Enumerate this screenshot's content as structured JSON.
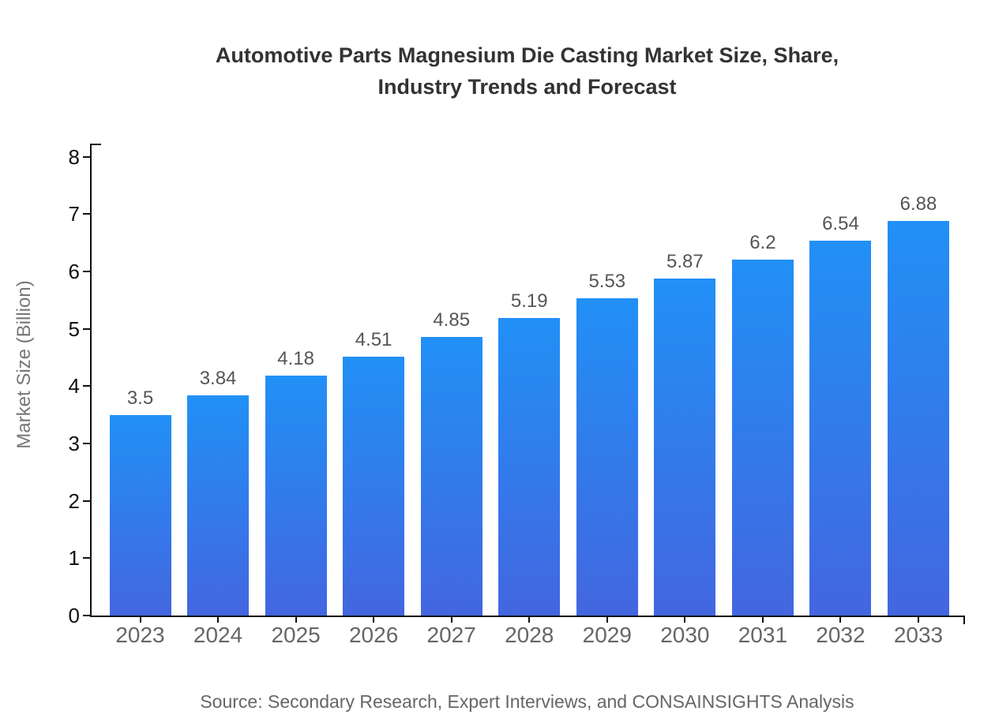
{
  "title": {
    "line1": "Automotive Parts Magnesium Die Casting Market Size, Share,",
    "line2": "Industry Trends and Forecast"
  },
  "source": "Source: Secondary Research, Expert Interviews, and CONSAINSIGHTS Analysis",
  "chart_data": {
    "type": "bar",
    "title": "Automotive Parts Magnesium Die Casting Market Size, Share, Industry Trends and Forecast",
    "categories": [
      "2023",
      "2024",
      "2025",
      "2026",
      "2027",
      "2028",
      "2029",
      "2030",
      "2031",
      "2032",
      "2033"
    ],
    "values": [
      3.5,
      3.84,
      4.18,
      4.51,
      4.85,
      5.19,
      5.53,
      5.87,
      6.2,
      6.54,
      6.88
    ],
    "value_labels": [
      "3.5",
      "3.84",
      "4.18",
      "4.51",
      "4.85",
      "5.19",
      "5.53",
      "5.87",
      "6.2",
      "6.54",
      "6.88"
    ],
    "xlabel": "",
    "ylabel": "Market Size (Billion)",
    "ylim": [
      0,
      8
    ],
    "yticks": [
      0,
      1,
      2,
      3,
      4,
      5,
      6,
      7,
      8
    ],
    "grid": false,
    "legend": false,
    "bar_color_top": "#2190f6",
    "bar_color_bottom": "#4366e0",
    "axis_color": "#111111",
    "label_color": "#555555",
    "tick_label_color": "#666666"
  }
}
